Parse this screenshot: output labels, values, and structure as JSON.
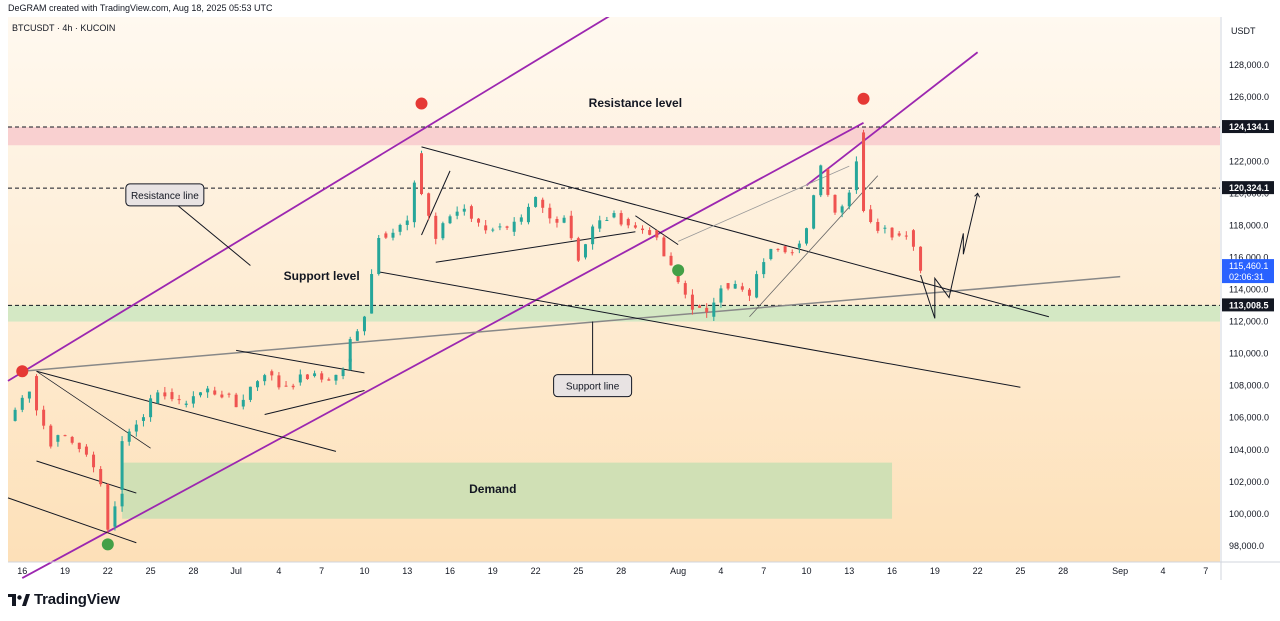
{
  "header": {
    "credit": "DeGRAM created with TradingView.com, Aug 18, 2025 05:53 UTC"
  },
  "symbol_line": "BTCUSDT · 4h · KUCOIN",
  "currency_label": "USDT",
  "footer": {
    "brand": "TradingView",
    "logo_text": "17"
  },
  "colors": {
    "bull": "#26a69a",
    "bear": "#ef5350",
    "channel": "#9c27b0",
    "resistance_zone": "#f8c9cc",
    "support_zone": "#cfe8c2",
    "demand_zone": "#cddfb4",
    "last_price_bg": "#2962ff"
  },
  "chart_data": {
    "type": "candlestick",
    "symbol": "BTCUSDT",
    "timeframe": "4h",
    "exchange": "KUCOIN",
    "ylim": [
      97000,
      131000
    ],
    "y_ticks": [
      98000,
      100000,
      102000,
      104000,
      106000,
      108000,
      110000,
      112000,
      114000,
      116000,
      118000,
      120000,
      122000,
      124000,
      126000,
      128000
    ],
    "y_tick_labels": [
      "98,000.0",
      "100,000.0",
      "102,000.0",
      "104,000.0",
      "106,000.0",
      "108,000.0",
      "110,000.0",
      "112,000.0",
      "114,000.0",
      "116,000.0",
      "118,000.0",
      "120,000.0",
      "122,000.0",
      "124,000.0",
      "126,000.0",
      "128,000.0"
    ],
    "x_axis": [
      "16",
      "19",
      "22",
      "25",
      "28",
      "Jul",
      "4",
      "7",
      "10",
      "13",
      "16",
      "19",
      "22",
      "25",
      "28",
      "Aug",
      "4",
      "7",
      "10",
      "13",
      "16",
      "19",
      "22",
      "25",
      "28",
      "Sep",
      "4",
      "7"
    ],
    "x_range": [
      "2025-06-15",
      "2025-09-08"
    ],
    "x_ticks": [
      {
        "label": "16",
        "date": "2025-06-16"
      },
      {
        "label": "19",
        "date": "2025-06-19"
      },
      {
        "label": "22",
        "date": "2025-06-22"
      },
      {
        "label": "25",
        "date": "2025-06-25"
      },
      {
        "label": "28",
        "date": "2025-06-28"
      },
      {
        "label": "Jul",
        "date": "2025-07-01"
      },
      {
        "label": "4",
        "date": "2025-07-04"
      },
      {
        "label": "7",
        "date": "2025-07-07"
      },
      {
        "label": "10",
        "date": "2025-07-10"
      },
      {
        "label": "13",
        "date": "2025-07-13"
      },
      {
        "label": "16",
        "date": "2025-07-16"
      },
      {
        "label": "19",
        "date": "2025-07-19"
      },
      {
        "label": "22",
        "date": "2025-07-22"
      },
      {
        "label": "25",
        "date": "2025-07-25"
      },
      {
        "label": "28",
        "date": "2025-07-28"
      },
      {
        "label": "Aug",
        "date": "2025-08-01"
      },
      {
        "label": "4",
        "date": "2025-08-04"
      },
      {
        "label": "7",
        "date": "2025-08-07"
      },
      {
        "label": "10",
        "date": "2025-08-10"
      },
      {
        "label": "13",
        "date": "2025-08-13"
      },
      {
        "label": "16",
        "date": "2025-08-16"
      },
      {
        "label": "19",
        "date": "2025-08-19"
      },
      {
        "label": "22",
        "date": "2025-08-22"
      },
      {
        "label": "25",
        "date": "2025-08-25"
      },
      {
        "label": "28",
        "date": "2025-08-28"
      },
      {
        "label": "Sep",
        "date": "2025-09-01"
      },
      {
        "label": "4",
        "date": "2025-09-04"
      },
      {
        "label": "7",
        "date": "2025-09-07"
      }
    ],
    "price_path": [
      [
        "2025-06-15",
        105800
      ],
      [
        "2025-06-16",
        107200
      ],
      [
        "2025-06-17",
        108600
      ],
      [
        "2025-06-17",
        106500
      ],
      [
        "2025-06-18",
        104500
      ],
      [
        "2025-06-19",
        104800
      ],
      [
        "2025-06-20",
        104200
      ],
      [
        "2025-06-21",
        102800
      ],
      [
        "2025-06-22",
        101500
      ],
      [
        "2025-06-22",
        99200
      ],
      [
        "2025-06-23",
        101500
      ],
      [
        "2025-06-23",
        104500
      ],
      [
        "2025-06-24",
        105800
      ],
      [
        "2025-06-25",
        106900
      ],
      [
        "2025-06-26",
        107600
      ],
      [
        "2025-06-27",
        106800
      ],
      [
        "2025-06-28",
        107400
      ],
      [
        "2025-06-29",
        107700
      ],
      [
        "2025-06-30",
        107500
      ],
      [
        "2025-07-01",
        106700
      ],
      [
        "2025-07-02",
        107900
      ],
      [
        "2025-07-03",
        108900
      ],
      [
        "2025-07-04",
        108000
      ],
      [
        "2025-07-05",
        108200
      ],
      [
        "2025-07-06",
        108600
      ],
      [
        "2025-07-07",
        108400
      ],
      [
        "2025-07-08",
        108600
      ],
      [
        "2025-07-09",
        109500
      ],
      [
        "2025-07-09",
        110800
      ],
      [
        "2025-07-10",
        112500
      ],
      [
        "2025-07-11",
        117500
      ],
      [
        "2025-07-12",
        117600
      ],
      [
        "2025-07-13",
        118200
      ],
      [
        "2025-07-14",
        122500
      ],
      [
        "2025-07-14",
        120000
      ],
      [
        "2025-07-15",
        117200
      ],
      [
        "2025-07-16",
        118600
      ],
      [
        "2025-07-17",
        119200
      ],
      [
        "2025-07-18",
        118000
      ],
      [
        "2025-07-19",
        117900
      ],
      [
        "2025-07-20",
        117600
      ],
      [
        "2025-07-21",
        118200
      ],
      [
        "2025-07-22",
        119600
      ],
      [
        "2025-07-23",
        118400
      ],
      [
        "2025-07-24",
        118600
      ],
      [
        "2025-07-25",
        116000
      ],
      [
        "2025-07-26",
        117800
      ],
      [
        "2025-07-27",
        118500
      ],
      [
        "2025-07-28",
        118400
      ],
      [
        "2025-07-29",
        117800
      ],
      [
        "2025-07-30",
        117700
      ],
      [
        "2025-07-31",
        116100
      ],
      [
        "2025-08-01",
        114400
      ],
      [
        "2025-08-02",
        113000
      ],
      [
        "2025-08-03",
        112300
      ],
      [
        "2025-08-04",
        114400
      ],
      [
        "2025-08-05",
        114200
      ],
      [
        "2025-08-06",
        113500
      ],
      [
        "2025-08-07",
        115900
      ],
      [
        "2025-08-08",
        116700
      ],
      [
        "2025-08-09",
        116600
      ],
      [
        "2025-08-10",
        117800
      ],
      [
        "2025-08-11",
        121500
      ],
      [
        "2025-08-12",
        118800
      ],
      [
        "2025-08-13",
        120200
      ],
      [
        "2025-08-14",
        123800
      ],
      [
        "2025-08-14",
        119000
      ],
      [
        "2025-08-15",
        117800
      ],
      [
        "2025-08-16",
        117500
      ],
      [
        "2025-08-17",
        117700
      ],
      [
        "2025-08-18",
        115460
      ]
    ],
    "last_price": 115460.1,
    "last_price_label": "115,460.1",
    "countdown": "02:06:31",
    "price_levels": [
      {
        "label": "124,134.1",
        "price": 124134.1,
        "dashed": true
      },
      {
        "label": "120,324.1",
        "price": 120324.1,
        "dashed": true
      },
      {
        "label": "113,008.5",
        "price": 113008.5,
        "dashed": true
      }
    ],
    "zones": [
      {
        "name": "Resistance zone",
        "from": 123000,
        "to": 124134.1
      },
      {
        "name": "Support zone",
        "from": 112000,
        "to": 113008.5
      },
      {
        "name": "Demand",
        "from": 99700,
        "to": 103200,
        "x_from": "2025-06-23",
        "x_to": "2025-08-16"
      }
    ],
    "annotations": {
      "resistance_level": "Resistance level",
      "support_level": "Support level",
      "resistance_line": "Resistance line",
      "support_line": "Support line",
      "demand": "Demand"
    },
    "markers": [
      {
        "type": "top",
        "color": "red",
        "date": "2025-06-16",
        "price": 108900
      },
      {
        "type": "top",
        "color": "red",
        "date": "2025-07-14",
        "price": 125600
      },
      {
        "type": "top",
        "color": "red",
        "date": "2025-08-14",
        "price": 125900
      },
      {
        "type": "bottom",
        "color": "green",
        "date": "2025-06-22",
        "price": 98100
      },
      {
        "type": "bottom",
        "color": "green",
        "date": "2025-08-01",
        "price": 115200
      }
    ],
    "projection": [
      [
        "2025-08-18",
        114900
      ],
      [
        "2025-08-19",
        112200
      ],
      [
        "2025-08-19",
        114700
      ],
      [
        "2025-08-20",
        113500
      ],
      [
        "2025-08-21",
        117500
      ],
      [
        "2025-08-21",
        116200
      ],
      [
        "2025-08-22",
        120000
      ]
    ]
  }
}
